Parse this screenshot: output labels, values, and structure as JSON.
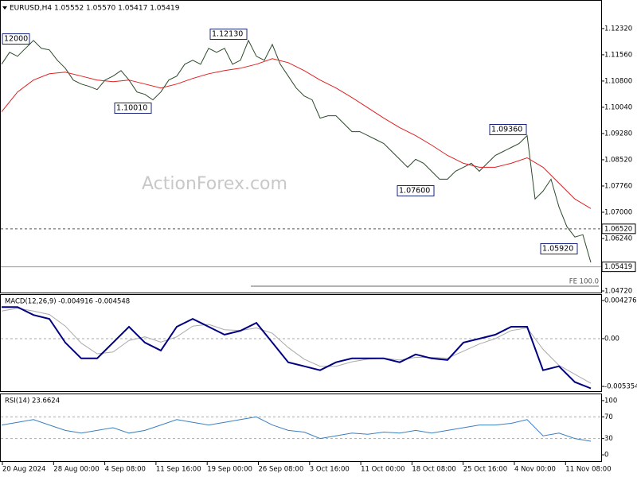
{
  "chart_data": [
    {
      "type": "line",
      "title": "EURUSD,H4 1.05552 1.05570 1.05417 1.05419",
      "watermark": "ActionForex.com",
      "x_labels": [
        "20 Aug 2024",
        "28 Aug 00:00",
        "4 Sep 08:00",
        "11 Sep 16:00",
        "19 Sep 00:00",
        "26 Sep 08:00",
        "3 Oct 16:00",
        "11 Oct 00:00",
        "18 Oct 08:00",
        "25 Oct 16:00",
        "4 Nov 00:00",
        "11 Nov 08:00"
      ],
      "ylim": [
        1.04674,
        1.13124
      ],
      "yticks": [
        {
          "value": 1.1232,
          "label": "1.12320"
        },
        {
          "value": 1.1156,
          "label": "1.11560"
        },
        {
          "value": 1.108,
          "label": "1.10800"
        },
        {
          "value": 1.1004,
          "label": "1.10040"
        },
        {
          "value": 1.0928,
          "label": "1.09280"
        },
        {
          "value": 1.0852,
          "label": "1.08520"
        },
        {
          "value": 1.0776,
          "label": "1.07760"
        },
        {
          "value": 1.07,
          "label": "1.07000"
        },
        {
          "value": 1.0624,
          "label": "1.06240"
        },
        {
          "value": 1.0472,
          "label": "1.04720"
        }
      ],
      "price_labels": [
        {
          "value": 1.0652,
          "label": "1.06520"
        },
        {
          "value": 1.05419,
          "label": "1.05419"
        }
      ],
      "fe_level": {
        "value": 1.04858,
        "label": "FE 100.0"
      },
      "annotations": [
        "12000",
        "1.12130",
        "1.10010",
        "1.07600",
        "1.09360",
        "1.05920"
      ],
      "series": [
        {
          "color": "#2c4a2c",
          "values": [
            1.11287,
            1.11631,
            1.11516,
            1.11746,
            1.11976,
            1.11746,
            1.117,
            1.11402,
            1.11172,
            1.10828,
            1.10713,
            1.10644,
            1.10552,
            1.10828,
            1.10943,
            1.11103,
            1.10828,
            1.10483,
            1.10414,
            1.10254,
            1.10483,
            1.10828,
            1.10943,
            1.11287,
            1.11402,
            1.11287,
            1.11746,
            1.11631,
            1.11746,
            1.11287,
            1.11402,
            1.11976,
            1.11516,
            1.11402,
            1.11861,
            1.11287,
            1.10943,
            1.10598,
            1.10368,
            1.10254,
            1.09726,
            1.09794,
            1.09794,
            1.09565,
            1.09335,
            1.09335,
            1.0922,
            1.09106,
            1.08991,
            1.08761,
            1.08532,
            1.08302,
            1.08532,
            1.08417,
            1.08187,
            1.07958,
            1.07958,
            1.08187,
            1.08302,
            1.08417,
            1.08187,
            1.08417,
            1.08646,
            1.08761,
            1.08876,
            1.08991,
            1.0922,
            1.07384,
            1.07613,
            1.07958,
            1.07154,
            1.0658,
            1.06281,
            1.0635,
            1.05547
          ]
        },
        {
          "color": "#e02020",
          "values": [
            1.09909,
            1.10483,
            1.10828,
            1.11011,
            1.11057,
            1.10943,
            1.10828,
            1.10782,
            1.10828,
            1.10713,
            1.10598,
            1.10713,
            1.10874,
            1.11011,
            1.11103,
            1.11172,
            1.11287,
            1.11448,
            1.11333,
            1.11103,
            1.10828,
            1.10598,
            1.10322,
            1.10024,
            1.09726,
            1.0945,
            1.0922,
            1.08945,
            1.08646,
            1.08417,
            1.08302,
            1.08302,
            1.08417,
            1.08577,
            1.08302,
            1.07843,
            1.07384,
            1.07108
          ]
        }
      ]
    },
    {
      "type": "line",
      "title": "MACD(12,26,9) -0.004916 -0.004548",
      "ylim": [
        -0.005885,
        0.004896
      ],
      "yticks": [
        0.004276,
        {
          "value": 0,
          "label": "0.00"
        },
        -0.005354
      ],
      "levels": [
        0
      ],
      "series": [
        {
          "color": "#aaaaaa",
          "values": [
            0.0031,
            0.0034,
            0.0031,
            0.0027,
            0.0014,
            -0.0005,
            -0.0017,
            -0.0015,
            -0.0002,
            0.0002,
            -0.0004,
            0.0002,
            0.0014,
            0.0016,
            0.001,
            0.0009,
            0.0012,
            0.0006,
            -0.001,
            -0.0023,
            -0.0031,
            -0.0031,
            -0.0026,
            -0.0023,
            -0.0022,
            -0.0024,
            -0.0021,
            -0.0021,
            -0.0022,
            -0.0014,
            -0.0006,
            0,
            0.0009,
            0.0012,
            -0.0012,
            -0.003,
            -0.004,
            -0.005
          ]
        },
        {
          "color": "#000080",
          "values": [
            0.00354,
            0.00354,
            0.002655,
            0.002213,
            -0.000443,
            -0.002213,
            -0.002213,
            -0.000443,
            0.001328,
            -0.000443,
            -0.001328,
            0.001328,
            0.002213,
            0.001328,
            0.000443,
            0.000885,
            0.00177,
            -0.000443,
            -0.002655,
            -0.003098,
            -0.00354,
            -0.002655,
            -0.002213,
            -0.002213,
            -0.002213,
            -0.002655,
            -0.00177,
            -0.002213,
            -0.00239,
            -0.000443,
            0,
            0.000443,
            0.001328,
            0.001328,
            -0.00354,
            -0.003098,
            -0.004868,
            -0.005576
          ]
        }
      ]
    },
    {
      "type": "line",
      "title": "RSI(14) 23.6624",
      "ylim": [
        -11.6,
        111.6
      ],
      "yticks": [
        100,
        70,
        30,
        0
      ],
      "levels": [
        70,
        30
      ],
      "series": [
        {
          "color": "#3a7fc2",
          "values": [
            55,
            60,
            65,
            55,
            45,
            40,
            45,
            50,
            40,
            45,
            55,
            65,
            60,
            55,
            60,
            65,
            70,
            55,
            45,
            42,
            30,
            35,
            40,
            38,
            42,
            40,
            45,
            40,
            45,
            50,
            55,
            55,
            58,
            65,
            35,
            40,
            30,
            25
          ]
        }
      ]
    }
  ]
}
